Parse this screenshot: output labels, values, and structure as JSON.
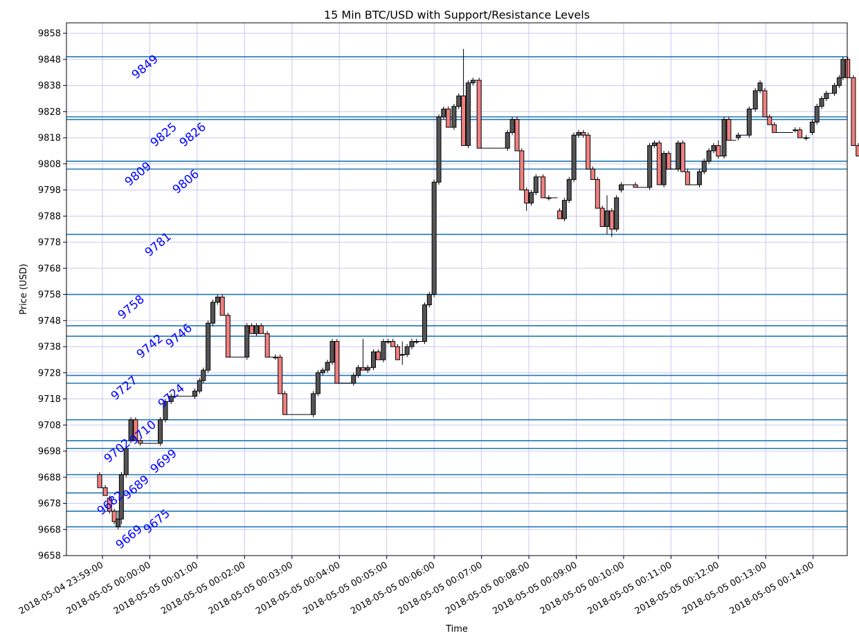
{
  "chart_data": {
    "type": "candlestick",
    "title": "15 Min BTC/USD with Support/Resistance Levels",
    "xlabel": "Time",
    "ylabel": "Price (USD)",
    "ylim": [
      9658,
      9862
    ],
    "y_ticks": [
      9658,
      9668,
      9678,
      9688,
      9698,
      9708,
      9718,
      9728,
      9738,
      9748,
      9758,
      9768,
      9778,
      9788,
      9798,
      9808,
      9818,
      9828,
      9838,
      9848,
      9858
    ],
    "x_ticks": [
      "2018-05-04 23:59:00",
      "2018-05-05 00:00:00",
      "2018-05-05 00:01:00",
      "2018-05-05 00:02:00",
      "2018-05-05 00:03:00",
      "2018-05-05 00:04:00",
      "2018-05-05 00:05:00",
      "2018-05-05 00:06:00",
      "2018-05-05 00:07:00",
      "2018-05-05 00:08:00",
      "2018-05-05 00:09:00",
      "2018-05-05 00:10:00",
      "2018-05-05 00:11:00",
      "2018-05-05 00:12:00",
      "2018-05-05 00:13:00",
      "2018-05-05 00:14:00"
    ],
    "grid": true,
    "up_color": "#555555",
    "down_color": "#f08080",
    "level_color": "#1f77b4",
    "label_color": "#0000ff",
    "levels": [
      9849,
      9826,
      9825,
      9809,
      9806,
      9781,
      9758,
      9746,
      9742,
      9727,
      9724,
      9710,
      9702,
      9699,
      9689,
      9682,
      9675,
      9669
    ],
    "level_labels": [
      {
        "text": "9849",
        "price": 9844
      },
      {
        "text": "9825",
        "price": 9818
      },
      {
        "text": "9826",
        "price": 9818
      },
      {
        "text": "9809",
        "price": 9803
      },
      {
        "text": "9806",
        "price": 9800
      },
      {
        "text": "9781",
        "price": 9776
      },
      {
        "text": "9758",
        "price": 9752
      },
      {
        "text": "9742",
        "price": 9737
      },
      {
        "text": "9746",
        "price": 9741
      },
      {
        "text": "9727",
        "price": 9721
      },
      {
        "text": "9724",
        "price": 9718
      },
      {
        "text": "9702",
        "price": 9697
      },
      {
        "text": "9710",
        "price": 9704
      },
      {
        "text": "9699",
        "price": 9693
      },
      {
        "text": "9682",
        "price": 9677
      },
      {
        "text": "9689",
        "price": 9683
      },
      {
        "text": "9669",
        "price": 9664
      },
      {
        "text": "9675",
        "price": 9670
      }
    ],
    "candles": [
      [
        -0.06,
        9689,
        9690,
        9684,
        9684
      ],
      [
        0.06,
        9684,
        9685,
        9681,
        9681
      ],
      [
        0.15,
        9680,
        9681,
        9674,
        9675
      ],
      [
        0.25,
        9675,
        9676,
        9670,
        9671
      ],
      [
        0.33,
        9669,
        9675,
        9668,
        9672
      ],
      [
        0.4,
        9672,
        9690,
        9670,
        9689
      ],
      [
        0.5,
        9689,
        9700,
        9688,
        9699
      ],
      [
        0.6,
        9702,
        9711,
        9701,
        9710
      ],
      [
        0.7,
        9710,
        9711,
        9702,
        9702
      ],
      [
        0.8,
        9702,
        9703,
        9700,
        9701
      ],
      [
        1.22,
        9701,
        9711,
        9700,
        9710
      ],
      [
        1.33,
        9710,
        9718,
        9709,
        9717
      ],
      [
        1.45,
        9717,
        9720,
        9716,
        9719
      ],
      [
        1.95,
        9719,
        9722,
        9718,
        9721
      ],
      [
        2.05,
        9721,
        9726,
        9720,
        9725
      ],
      [
        2.13,
        9725,
        9730,
        9724,
        9729
      ],
      [
        2.23,
        9729,
        9748,
        9728,
        9747
      ],
      [
        2.33,
        9747,
        9756,
        9746,
        9755
      ],
      [
        2.43,
        9755,
        9758,
        9754,
        9757
      ],
      [
        2.53,
        9757,
        9758,
        9750,
        9750
      ],
      [
        2.65,
        9750,
        9751,
        9734,
        9734
      ],
      [
        3.05,
        9734,
        9747,
        9733,
        9746
      ],
      [
        3.15,
        9746,
        9747,
        9743,
        9743
      ],
      [
        3.25,
        9743,
        9747,
        9742,
        9746
      ],
      [
        3.35,
        9746,
        9747,
        9743,
        9743
      ],
      [
        3.48,
        9743,
        9744,
        9734,
        9734
      ],
      [
        3.65,
        9734,
        9735,
        9733,
        9734
      ],
      [
        3.75,
        9734,
        9735,
        9720,
        9720
      ],
      [
        3.85,
        9720,
        9721,
        9712,
        9712
      ],
      [
        4.45,
        9712,
        9721,
        9711,
        9720
      ],
      [
        4.55,
        9720,
        9729,
        9719,
        9728
      ],
      [
        4.65,
        9728,
        9730,
        9727,
        9729
      ],
      [
        4.75,
        9729,
        9733,
        9728,
        9732
      ],
      [
        4.85,
        9732,
        9741,
        9731,
        9740
      ],
      [
        4.95,
        9740,
        9741,
        9724,
        9724
      ],
      [
        5.3,
        9724,
        9728,
        9723,
        9727
      ],
      [
        5.4,
        9727,
        9731,
        9726,
        9730
      ],
      [
        5.5,
        9730,
        9741,
        9729,
        9729
      ],
      [
        5.6,
        9729,
        9731,
        9728,
        9730
      ],
      [
        5.72,
        9730,
        9737,
        9729,
        9736
      ],
      [
        5.82,
        9736,
        9737,
        9733,
        9733
      ],
      [
        5.93,
        9733,
        9741,
        9732,
        9740
      ],
      [
        6.03,
        9740,
        9741,
        9739,
        9740
      ],
      [
        6.13,
        9740,
        9741,
        9738,
        9738
      ],
      [
        6.23,
        9738,
        9739,
        9733,
        9733
      ],
      [
        6.33,
        9735,
        9740,
        9731,
        9735
      ],
      [
        6.43,
        9735,
        9739,
        9734,
        9738
      ],
      [
        6.53,
        9738,
        9741,
        9737,
        9740
      ],
      [
        6.63,
        9740,
        9741,
        9739,
        9740
      ],
      [
        6.8,
        9740,
        9755,
        9739,
        9754
      ],
      [
        6.9,
        9754,
        9759,
        9753,
        9758
      ],
      [
        7.0,
        9758,
        9802,
        9757,
        9801
      ],
      [
        7.1,
        9801,
        9827,
        9800,
        9826
      ],
      [
        7.2,
        9826,
        9830,
        9825,
        9829
      ],
      [
        7.3,
        9829,
        9830,
        9822,
        9822
      ],
      [
        7.42,
        9822,
        9831,
        9821,
        9830
      ],
      [
        7.52,
        9830,
        9835,
        9829,
        9834
      ],
      [
        7.62,
        9834,
        9852,
        9815,
        9815
      ],
      [
        7.72,
        9815,
        9840,
        9814,
        9839
      ],
      [
        7.82,
        9839,
        9841,
        9838,
        9840
      ],
      [
        7.95,
        9840,
        9841,
        9814,
        9814
      ],
      [
        8.55,
        9814,
        9821,
        9813,
        9820
      ],
      [
        8.65,
        9820,
        9826,
        9819,
        9825
      ],
      [
        8.75,
        9825,
        9826,
        9813,
        9813
      ],
      [
        8.85,
        9813,
        9814,
        9798,
        9798
      ],
      [
        8.95,
        9798,
        9799,
        9790,
        9793
      ],
      [
        9.05,
        9793,
        9798,
        9792,
        9797
      ],
      [
        9.15,
        9797,
        9804,
        9796,
        9803
      ],
      [
        9.3,
        9803,
        9804,
        9795,
        9795
      ],
      [
        9.42,
        9795,
        9796,
        9794,
        9795
      ],
      [
        9.65,
        9790,
        9791,
        9787,
        9787
      ],
      [
        9.75,
        9787,
        9795,
        9786,
        9794
      ],
      [
        9.85,
        9794,
        9803,
        9793,
        9802
      ],
      [
        9.95,
        9802,
        9820,
        9801,
        9819
      ],
      [
        10.05,
        9819,
        9821,
        9818,
        9820
      ],
      [
        10.15,
        9820,
        9821,
        9818,
        9819
      ],
      [
        10.25,
        9819,
        9820,
        9806,
        9806
      ],
      [
        10.35,
        9806,
        9807,
        9802,
        9802
      ],
      [
        10.45,
        9802,
        9803,
        9791,
        9791
      ],
      [
        10.55,
        9791,
        9792,
        9784,
        9784
      ],
      [
        10.65,
        9784,
        9796,
        9781,
        9790
      ],
      [
        10.75,
        9790,
        9791,
        9780,
        9783
      ],
      [
        10.85,
        9783,
        9796,
        9782,
        9795
      ],
      [
        10.95,
        9798,
        9801,
        9797,
        9800
      ],
      [
        11.25,
        9800,
        9801,
        9799,
        9799
      ],
      [
        11.55,
        9799,
        9816,
        9798,
        9815
      ],
      [
        11.65,
        9815,
        9817,
        9814,
        9816
      ],
      [
        11.75,
        9816,
        9817,
        9800,
        9800
      ],
      [
        11.85,
        9800,
        9813,
        9799,
        9812
      ],
      [
        11.95,
        9812,
        9813,
        9806,
        9806
      ],
      [
        12.15,
        9806,
        9817,
        9805,
        9816
      ],
      [
        12.25,
        9816,
        9817,
        9805,
        9805
      ],
      [
        12.35,
        9805,
        9806,
        9800,
        9800
      ],
      [
        12.6,
        9800,
        9806,
        9799,
        9805
      ],
      [
        12.7,
        9805,
        9810,
        9804,
        9809
      ],
      [
        12.8,
        9809,
        9814,
        9808,
        9813
      ],
      [
        12.9,
        9813,
        9816,
        9812,
        9815
      ],
      [
        13.0,
        9815,
        9817,
        9810,
        9811
      ],
      [
        13.12,
        9811,
        9826,
        9810,
        9825
      ],
      [
        13.22,
        9825,
        9826,
        9817,
        9817
      ],
      [
        13.42,
        9818,
        9820,
        9817,
        9819
      ],
      [
        13.65,
        9819,
        9830,
        9818,
        9829
      ],
      [
        13.78,
        9829,
        9837,
        9828,
        9836
      ],
      [
        13.88,
        9836,
        9840,
        9835,
        9839
      ],
      [
        13.98,
        9836,
        9837,
        9826,
        9826
      ],
      [
        14.08,
        9826,
        9827,
        9823,
        9823
      ],
      [
        14.18,
        9823,
        9824,
        9820,
        9820
      ],
      [
        14.62,
        9821,
        9822,
        9820,
        9821
      ],
      [
        14.72,
        9821,
        9822,
        9818,
        9818
      ],
      [
        14.85,
        9818,
        9819,
        9817,
        9818
      ],
      [
        14.98,
        9820,
        9825,
        9819,
        9824
      ],
      [
        15.08,
        9824,
        9831,
        9823,
        9830
      ],
      [
        15.18,
        9830,
        9834,
        9829,
        9833
      ],
      [
        15.28,
        9833,
        9836,
        9832,
        9835
      ],
      [
        15.45,
        9835,
        9839,
        9834,
        9838
      ],
      [
        15.55,
        9838,
        9842,
        9837,
        9841
      ],
      [
        15.63,
        9841,
        9849,
        9840,
        9848
      ],
      [
        15.73,
        9848,
        9849,
        9841,
        9841
      ],
      [
        15.85,
        9841,
        9842,
        9815,
        9815
      ],
      [
        15.95,
        9815,
        9816,
        9811,
        9811
      ]
    ]
  }
}
